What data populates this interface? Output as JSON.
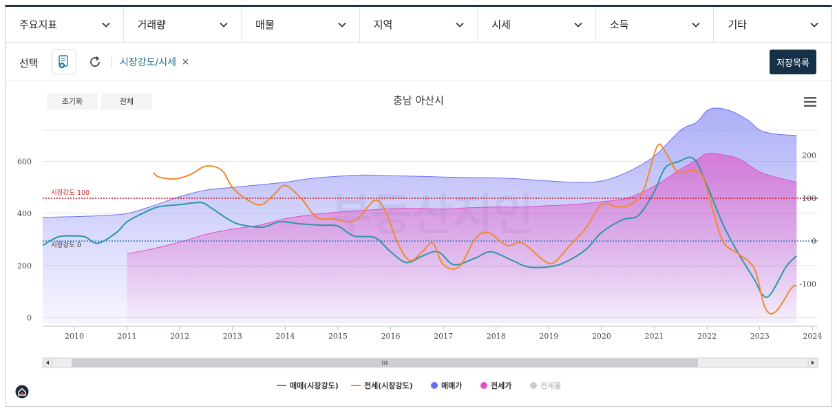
{
  "menu": [
    {
      "label": "주요지표"
    },
    {
      "label": "거래량"
    },
    {
      "label": "매물"
    },
    {
      "label": "지역"
    },
    {
      "label": "시세"
    },
    {
      "label": "소득"
    },
    {
      "label": "기타"
    }
  ],
  "toolbar": {
    "select_label": "선택",
    "chip_label": "시장강도/시세",
    "chip_close": "×",
    "save_list_label": "저장목록"
  },
  "chart_controls": {
    "reset_label": "초기화",
    "all_label": "전체"
  },
  "colors": {
    "sale_line": "#2b96a6",
    "jeonse_line": "#f0892e",
    "sale_price_area": "#6c6ef0",
    "jeonse_price_area": "#e24fc2",
    "reference_100": "#d4161b",
    "reference_0": "#2f7cc0",
    "nav_bar": "#163048"
  },
  "chart_data": {
    "type": "line",
    "title": "충남 아산시",
    "watermark": "부동산지인",
    "x_tick_labels": [
      "2010",
      "2011",
      "2012",
      "2013",
      "2014",
      "2015",
      "2016",
      "2017",
      "2018",
      "2019",
      "2020",
      "2021",
      "2022",
      "2023",
      "2024"
    ],
    "x_range": [
      2009.4,
      2024.1
    ],
    "left_axis": {
      "ticks": [
        "0",
        "200",
        "400",
        "600"
      ],
      "range": [
        -20,
        760
      ]
    },
    "right_axis": {
      "ticks": [
        "-100",
        "0",
        "100",
        "200"
      ],
      "range": [
        -190.8,
        283.1
      ]
    },
    "reference_lines": [
      {
        "label": "시장강도 100",
        "value": 100
      },
      {
        "label": "시장강도 0",
        "value": 0
      }
    ],
    "legend_position": "bottom-center",
    "series": [
      {
        "name": "매매(시장강도)",
        "kind": "line",
        "axis": "right",
        "x": [
          2009.4,
          2009.7,
          2010.0,
          2010.2,
          2010.45,
          2010.8,
          2011.0,
          2011.3,
          2011.6,
          2012.0,
          2012.4,
          2012.6,
          2013.0,
          2013.3,
          2013.6,
          2013.9,
          2014.3,
          2014.7,
          2015.0,
          2015.3,
          2015.7,
          2016.0,
          2016.3,
          2016.6,
          2016.9,
          2017.2,
          2017.6,
          2017.9,
          2018.3,
          2018.6,
          2019.0,
          2019.3,
          2019.7,
          2020.0,
          2020.4,
          2020.7,
          2021.0,
          2021.2,
          2021.45,
          2021.75,
          2022.0,
          2022.3,
          2022.6,
          2022.9,
          2023.05,
          2023.2,
          2023.5,
          2023.7
        ],
        "y": [
          -10,
          10,
          12,
          10,
          -5,
          20,
          45,
          65,
          80,
          85,
          90,
          77,
          45,
          35,
          33,
          45,
          40,
          37,
          35,
          12,
          8,
          -25,
          -50,
          -35,
          -25,
          -55,
          -40,
          -25,
          -45,
          -60,
          -60,
          -50,
          -20,
          20,
          50,
          60,
          115,
          170,
          185,
          192,
          130,
          40,
          -30,
          -90,
          -125,
          -125,
          -60,
          -35
        ]
      },
      {
        "name": "전세(시장강도)",
        "kind": "line",
        "axis": "right",
        "x": [
          2011.5,
          2011.6,
          2011.9,
          2012.2,
          2012.5,
          2012.8,
          2013.0,
          2013.3,
          2013.55,
          2013.8,
          2014.0,
          2014.3,
          2014.6,
          2014.9,
          2015.2,
          2015.4,
          2015.7,
          2015.9,
          2016.1,
          2016.35,
          2016.6,
          2016.8,
          2017.0,
          2017.3,
          2017.6,
          2017.85,
          2018.2,
          2018.5,
          2018.9,
          2019.1,
          2019.4,
          2019.7,
          2020.0,
          2020.3,
          2020.55,
          2020.8,
          2021.05,
          2021.2,
          2021.45,
          2021.7,
          2021.9,
          2022.05,
          2022.3,
          2022.6,
          2022.9,
          2023.1,
          2023.3,
          2023.6,
          2023.7
        ],
        "y": [
          160,
          150,
          145,
          155,
          175,
          165,
          125,
          95,
          85,
          110,
          130,
          100,
          55,
          52,
          45,
          55,
          95,
          70,
          5,
          -45,
          -25,
          -5,
          -55,
          -60,
          5,
          20,
          -10,
          -5,
          -45,
          -50,
          -10,
          30,
          85,
          80,
          85,
          120,
          220,
          210,
          160,
          165,
          155,
          100,
          0,
          -30,
          -65,
          -155,
          -165,
          -110,
          -105
        ]
      },
      {
        "name": "매매가",
        "kind": "area",
        "axis": "left",
        "x": [
          2009.4,
          2010.0,
          2010.5,
          2011.0,
          2011.5,
          2012.0,
          2012.5,
          2013.0,
          2013.5,
          2014.0,
          2014.5,
          2015.0,
          2015.5,
          2016.0,
          2016.5,
          2017.0,
          2017.5,
          2018.0,
          2018.5,
          2019.0,
          2019.5,
          2020.0,
          2020.5,
          2021.0,
          2021.5,
          2021.8,
          2022.0,
          2022.2,
          2022.5,
          2022.8,
          2023.0,
          2023.3,
          2023.7
        ],
        "y": [
          385,
          388,
          392,
          400,
          430,
          465,
          490,
          500,
          510,
          520,
          535,
          543,
          548,
          545,
          543,
          540,
          538,
          537,
          532,
          525,
          520,
          525,
          560,
          620,
          720,
          750,
          795,
          805,
          790,
          755,
          720,
          705,
          700
        ]
      },
      {
        "name": "전세가",
        "kind": "area",
        "axis": "left",
        "x": [
          2011.0,
          2011.5,
          2012.0,
          2012.5,
          2013.0,
          2013.5,
          2014.0,
          2014.5,
          2015.0,
          2015.5,
          2016.0,
          2016.5,
          2017.0,
          2017.5,
          2018.0,
          2018.5,
          2019.0,
          2019.5,
          2020.0,
          2020.5,
          2021.0,
          2021.5,
          2021.8,
          2022.0,
          2022.3,
          2022.6,
          2023.0,
          2023.3,
          2023.7
        ],
        "y": [
          245,
          265,
          290,
          320,
          340,
          355,
          380,
          395,
          405,
          412,
          418,
          420,
          417,
          422,
          425,
          425,
          430,
          435,
          445,
          460,
          505,
          570,
          605,
          630,
          625,
          610,
          560,
          540,
          520
        ]
      },
      {
        "name": "전세율",
        "kind": "line",
        "axis": "left",
        "hidden": true,
        "x": [],
        "y": []
      }
    ]
  }
}
